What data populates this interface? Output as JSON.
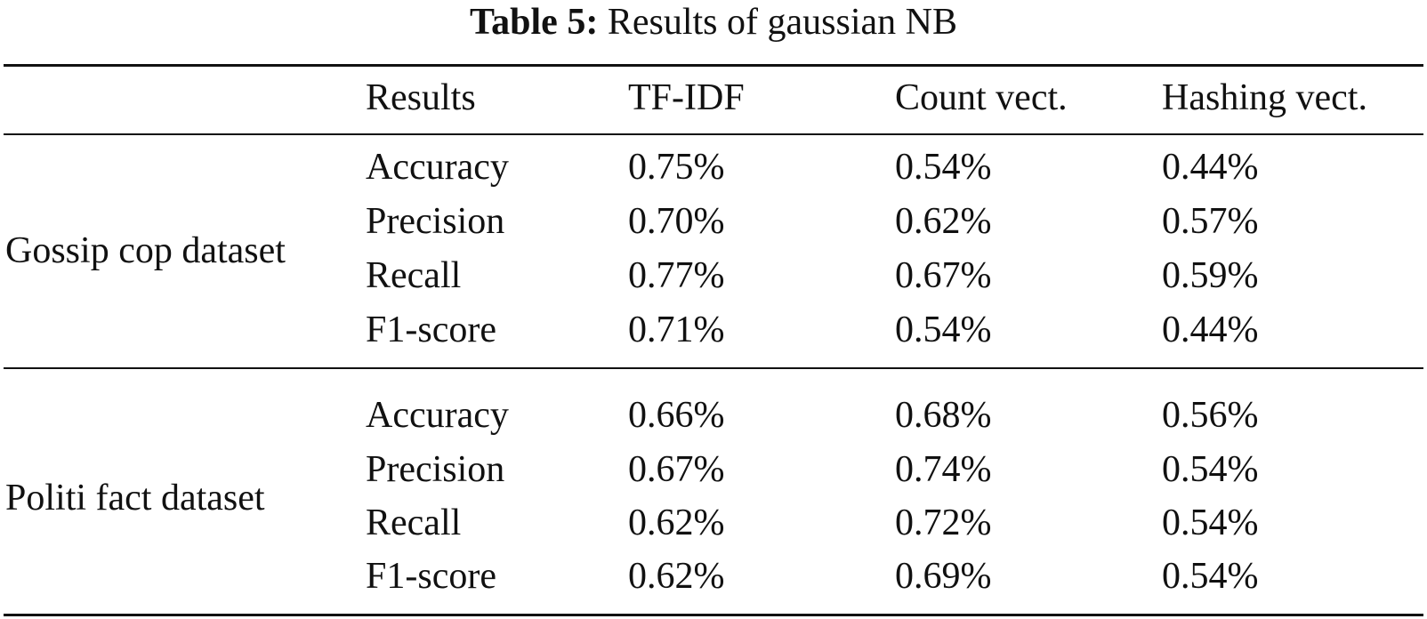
{
  "caption": {
    "label": "Table 5:",
    "text": "Results of gaussian NB"
  },
  "header": {
    "group": "",
    "results": "Results",
    "tfidf": "TF-IDF",
    "count": "Count vect.",
    "hashing": "Hashing vect."
  },
  "groups": [
    {
      "name": "Gossip cop dataset",
      "rows": [
        {
          "metric": "Accuracy",
          "tfidf": "0.75%",
          "count": "0.54%",
          "hashing": "0.44%"
        },
        {
          "metric": "Precision",
          "tfidf": "0.70%",
          "count": "0.62%",
          "hashing": "0.57%"
        },
        {
          "metric": "Recall",
          "tfidf": "0.77%",
          "count": "0.67%",
          "hashing": "0.59%"
        },
        {
          "metric": "F1-score",
          "tfidf": "0.71%",
          "count": "0.54%",
          "hashing": "0.44%"
        }
      ]
    },
    {
      "name": "Politi fact dataset",
      "rows": [
        {
          "metric": "Accuracy",
          "tfidf": "0.66%",
          "count": "0.68%",
          "hashing": "0.56%"
        },
        {
          "metric": "Precision",
          "tfidf": "0.67%",
          "count": "0.74%",
          "hashing": "0.54%"
        },
        {
          "metric": "Recall",
          "tfidf": "0.62%",
          "count": "0.72%",
          "hashing": "0.54%"
        },
        {
          "metric": "F1-score",
          "tfidf": "0.62%",
          "count": "0.69%",
          "hashing": "0.54%"
        }
      ]
    }
  ]
}
